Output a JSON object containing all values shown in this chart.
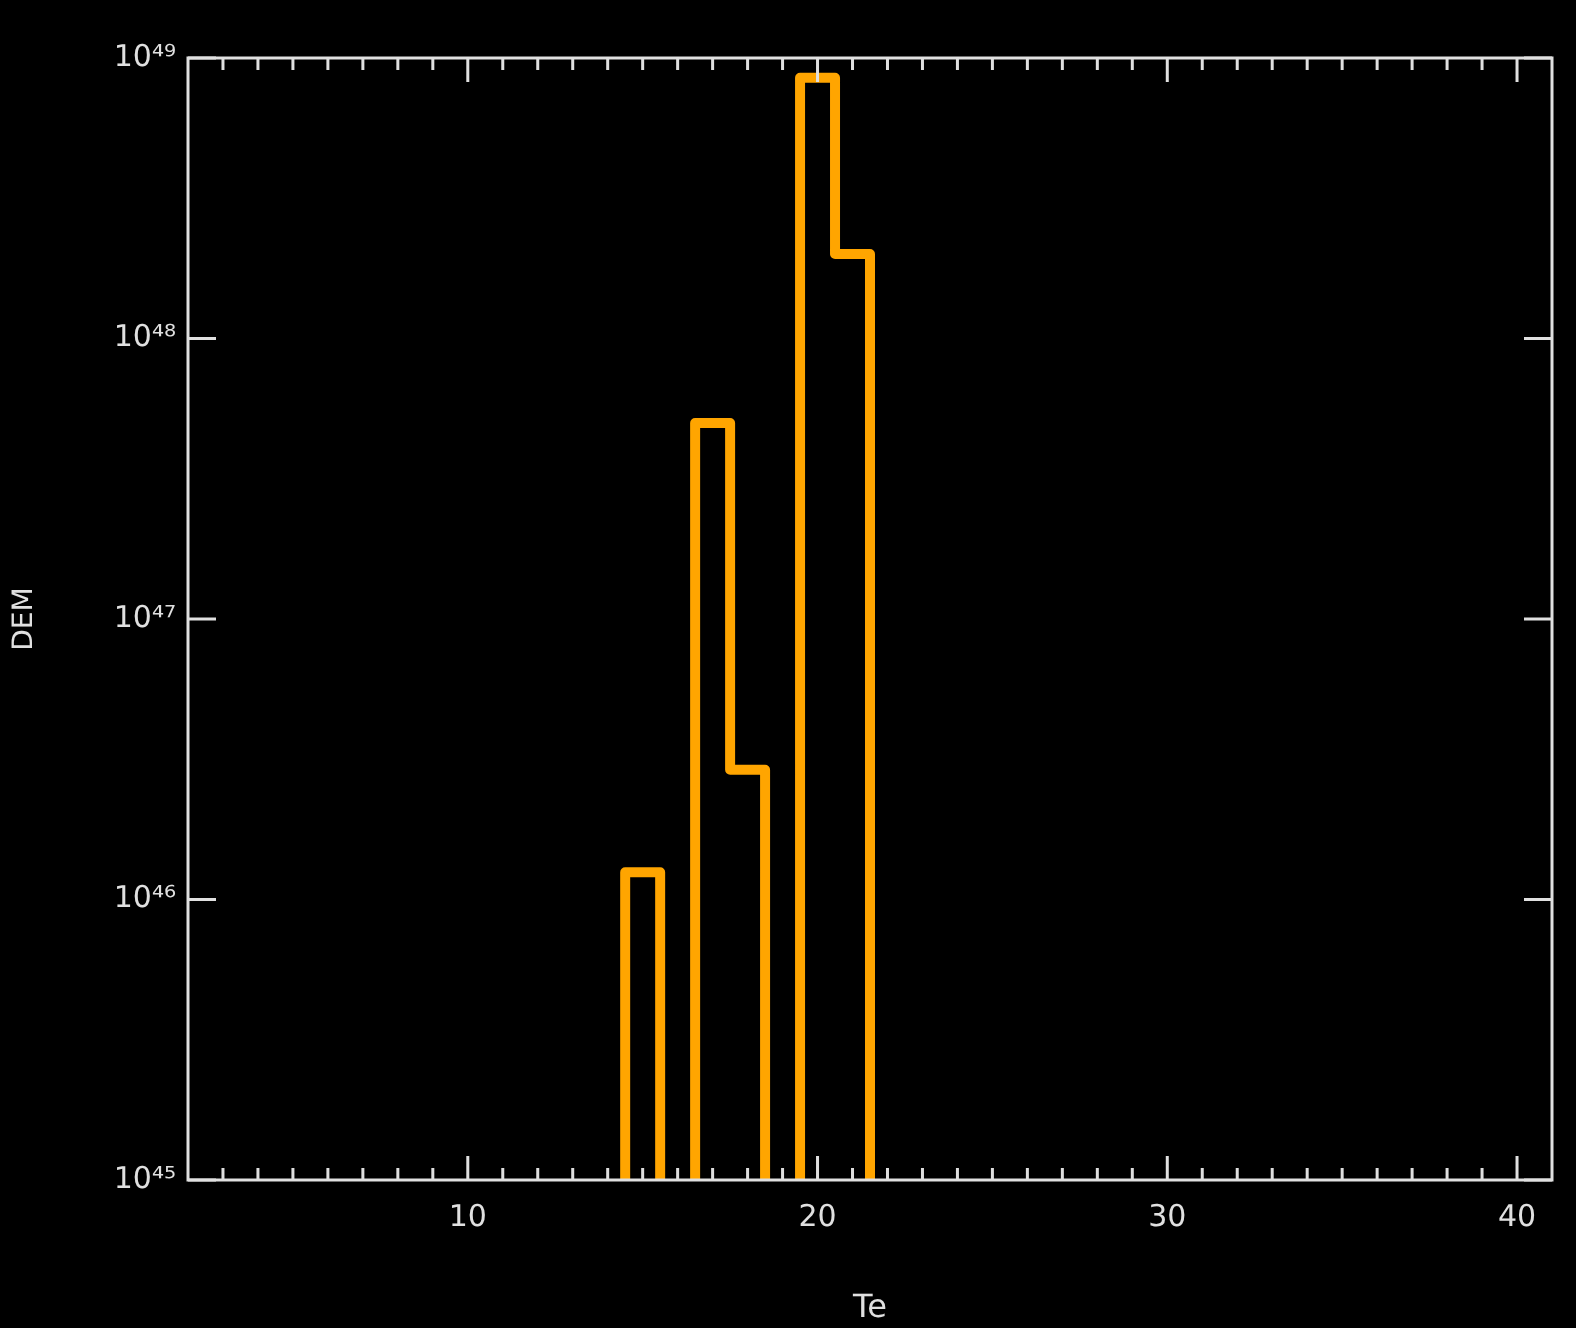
{
  "chart_data": {
    "type": "histogram",
    "xlabel": "Te",
    "ylabel": "DEM",
    "bins": [
      14.5,
      15.5,
      16.5,
      17.5,
      18.5,
      19.5,
      20.5,
      21.5
    ],
    "values": [
      1.25e+46,
      null,
      5e+47,
      2.9e+46,
      null,
      8.5e+48,
      2e+48
    ],
    "color": "#ffa500",
    "log": "y",
    "xlim": [
      2,
      41
    ],
    "xticks": [
      {
        "value": 3,
        "label": null
      },
      {
        "value": 4,
        "label": null
      },
      {
        "value": 5,
        "label": null
      },
      {
        "value": 6,
        "label": null
      },
      {
        "value": 7,
        "label": null
      },
      {
        "value": 8,
        "label": null
      },
      {
        "value": 9,
        "label": null
      },
      10,
      {
        "value": 11,
        "label": null
      },
      {
        "value": 12,
        "label": null
      },
      {
        "value": 13,
        "label": null
      },
      {
        "value": 14,
        "label": null
      },
      {
        "value": 15,
        "label": null
      },
      {
        "value": 16,
        "label": null
      },
      {
        "value": 17,
        "label": null
      },
      {
        "value": 18,
        "label": null
      },
      {
        "value": 19,
        "label": null
      },
      20,
      {
        "value": 21,
        "label": null
      },
      {
        "value": 22,
        "label": null
      },
      {
        "value": 23,
        "label": null
      },
      {
        "value": 24,
        "label": null
      },
      {
        "value": 25,
        "label": null
      },
      {
        "value": 26,
        "label": null
      },
      {
        "value": 27,
        "label": null
      },
      {
        "value": 28,
        "label": null
      },
      {
        "value": 29,
        "label": null
      },
      30,
      {
        "value": 31,
        "label": null
      },
      {
        "value": 32,
        "label": null
      },
      {
        "value": 33,
        "label": null
      },
      {
        "value": 34,
        "label": null
      },
      {
        "value": 35,
        "label": null
      },
      {
        "value": 36,
        "label": null
      },
      {
        "value": 37,
        "label": null
      },
      {
        "value": 38,
        "label": null
      },
      {
        "value": 39,
        "label": null
      },
      40
    ],
    "ylim": [
      1e+45,
      1e+49
    ],
    "yticks": [
      {
        "value": 1e+45,
        "label": "10⁴⁵"
      },
      {
        "value": 1e+46,
        "label": "10⁴⁶"
      },
      {
        "value": 1e+47,
        "label": "10⁴⁷"
      },
      {
        "value": 1e+48,
        "label": "10⁴⁸"
      },
      {
        "value": 1e+49,
        "label": "10⁴⁹"
      }
    ]
  }
}
